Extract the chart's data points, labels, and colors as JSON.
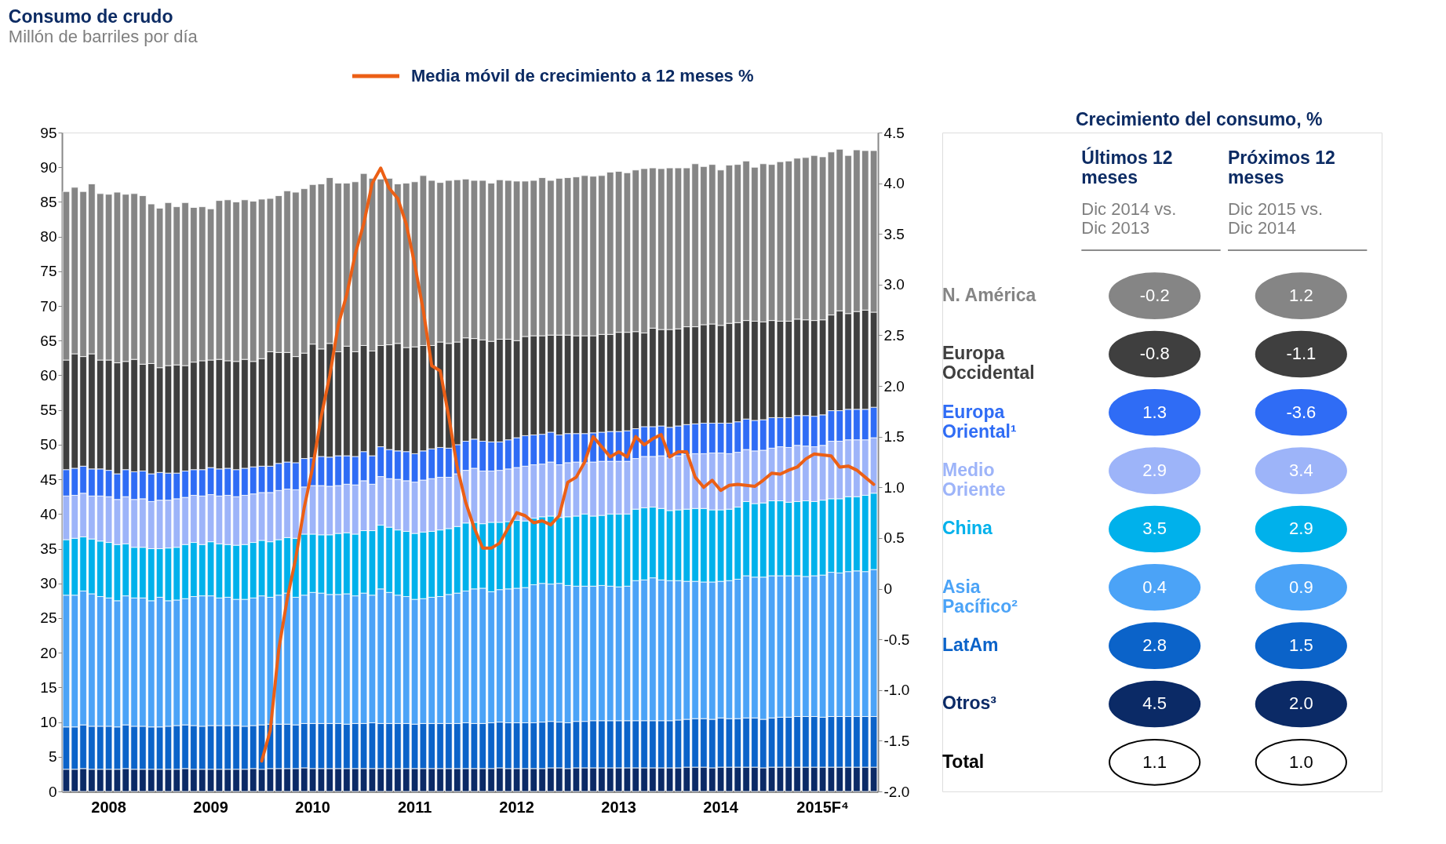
{
  "chart_data": [
    {
      "type": "bar",
      "stacked": true,
      "title": "Consumo de crudo",
      "subtitle": "Millón de barriles por día",
      "categories": [
        null,
        null,
        null,
        null,
        null,
        "2008",
        null,
        null,
        null,
        null,
        null,
        null,
        null,
        null,
        null,
        null,
        null,
        "2009",
        null,
        null,
        null,
        null,
        null,
        null,
        null,
        null,
        null,
        null,
        null,
        "2010",
        null,
        null,
        null,
        null,
        null,
        null,
        null,
        null,
        null,
        null,
        null,
        "2011",
        null,
        null,
        null,
        null,
        null,
        null,
        null,
        null,
        null,
        null,
        null,
        "2012",
        null,
        null,
        null,
        null,
        null,
        null,
        null,
        null,
        null,
        null,
        null,
        "2013",
        null,
        null,
        null,
        null,
        null,
        null,
        null,
        null,
        null,
        null,
        null,
        "2014",
        null,
        null,
        null,
        null,
        null,
        null,
        null,
        null,
        null,
        null,
        null,
        "2015F⁴",
        null,
        null,
        null,
        null,
        null,
        null
      ],
      "series": [
        {
          "color": "#0b2a66",
          "values": [
            3.2,
            3.2,
            3.3,
            3.2,
            3.2,
            3.2,
            3.2,
            3.3,
            3.2,
            3.2,
            3.2,
            3.2,
            3.2,
            3.2,
            3.3,
            3.2,
            3.2,
            3.2,
            3.2,
            3.2,
            3.2,
            3.2,
            3.3,
            3.2,
            3.3,
            3.3,
            3.3,
            3.3,
            3.4,
            3.3,
            3.3,
            3.3,
            3.3,
            3.3,
            3.3,
            3.3,
            3.3,
            3.3,
            3.3,
            3.3,
            3.3,
            3.3,
            3.3,
            3.3,
            3.3,
            3.3,
            3.3,
            3.3,
            3.3,
            3.3,
            3.3,
            3.4,
            3.3,
            3.3,
            3.3,
            3.3,
            3.3,
            3.4,
            3.4,
            3.3,
            3.4,
            3.4,
            3.4,
            3.4,
            3.4,
            3.4,
            3.4,
            3.4,
            3.4,
            3.4,
            3.4,
            3.4,
            3.4,
            3.5,
            3.5,
            3.5,
            3.4,
            3.5,
            3.5,
            3.5,
            3.5,
            3.5,
            3.4,
            3.5,
            3.5,
            3.5,
            3.5,
            3.5,
            3.5,
            3.5,
            3.5,
            3.5,
            3.5,
            3.5,
            3.5,
            3.5
          ]
        },
        {
          "color": "#0b63c9",
          "values": [
            6.1,
            6.1,
            6.3,
            6.2,
            6.2,
            6.2,
            6.1,
            6.3,
            6.2,
            6.2,
            6.1,
            6.1,
            6.2,
            6.3,
            6.3,
            6.3,
            6.2,
            6.3,
            6.3,
            6.3,
            6.3,
            6.2,
            6.2,
            6.4,
            6.4,
            6.4,
            6.4,
            6.3,
            6.4,
            6.5,
            6.5,
            6.5,
            6.5,
            6.4,
            6.5,
            6.5,
            6.6,
            6.5,
            6.5,
            6.5,
            6.5,
            6.4,
            6.5,
            6.5,
            6.5,
            6.5,
            6.5,
            6.6,
            6.5,
            6.5,
            6.6,
            6.6,
            6.6,
            6.6,
            6.6,
            6.6,
            6.7,
            6.7,
            6.6,
            6.6,
            6.7,
            6.7,
            6.8,
            6.8,
            6.8,
            6.8,
            6.8,
            6.8,
            6.8,
            6.8,
            6.8,
            6.8,
            6.9,
            6.9,
            7.0,
            7.0,
            7.0,
            7.1,
            7.0,
            7.0,
            7.1,
            7.1,
            7.0,
            7.1,
            7.2,
            7.2,
            7.3,
            7.3,
            7.3,
            7.2,
            7.3,
            7.3,
            7.3,
            7.3,
            7.3,
            7.3
          ]
        },
        {
          "color": "#4ba3f7",
          "values": [
            19.0,
            19.0,
            19.3,
            19.1,
            18.7,
            18.5,
            18.2,
            18.6,
            18.5,
            18.5,
            18.2,
            18.7,
            18.1,
            18.1,
            18.2,
            18.6,
            18.8,
            18.7,
            18.4,
            18.5,
            18.2,
            18.3,
            18.4,
            18.6,
            18.3,
            18.6,
            18.9,
            18.4,
            18.5,
            18.9,
            18.8,
            18.6,
            18.6,
            18.8,
            18.4,
            18.8,
            18.4,
            19.4,
            18.9,
            18.5,
            18.3,
            18.0,
            18.0,
            18.2,
            18.3,
            18.6,
            18.8,
            19.0,
            19.4,
            19.5,
            18.9,
            19.1,
            19.3,
            19.4,
            19.5,
            19.9,
            20.0,
            19.8,
            20.0,
            19.8,
            19.5,
            19.5,
            19.4,
            19.5,
            19.4,
            19.3,
            19.4,
            20.2,
            20.3,
            20.6,
            20.3,
            20.2,
            20.1,
            19.9,
            19.8,
            19.7,
            19.8,
            19.7,
            19.9,
            20.1,
            20.5,
            20.3,
            20.5,
            20.5,
            20.4,
            20.4,
            20.3,
            20.2,
            20.3,
            20.5,
            20.8,
            20.7,
            20.9,
            21.0,
            20.9,
            21.2
          ]
        },
        {
          "color": "#00b1eb",
          "values": [
            8.0,
            8.2,
            7.8,
            7.9,
            8.0,
            8.0,
            8.1,
            7.5,
            7.3,
            7.3,
            7.5,
            7.0,
            7.6,
            7.6,
            7.8,
            7.8,
            7.4,
            7.8,
            7.8,
            7.6,
            7.8,
            7.9,
            8.0,
            8.0,
            8.0,
            8.0,
            8.0,
            8.5,
            8.8,
            8.4,
            8.4,
            8.6,
            8.8,
            8.8,
            8.9,
            9.0,
            9.3,
            9.2,
            9.4,
            9.4,
            9.4,
            9.5,
            9.6,
            9.5,
            9.6,
            9.5,
            9.6,
            9.8,
            9.6,
            9.3,
            10.0,
            9.7,
            9.7,
            9.8,
            9.6,
            9.6,
            9.6,
            9.8,
            9.5,
            9.9,
            10.1,
            10.4,
            10.1,
            10.1,
            10.4,
            10.5,
            10.4,
            10.3,
            10.4,
            10.2,
            10.3,
            10.1,
            10.2,
            10.4,
            10.5,
            10.6,
            10.4,
            10.3,
            10.3,
            10.4,
            10.7,
            10.6,
            10.7,
            10.8,
            10.8,
            10.6,
            10.7,
            10.9,
            10.7,
            10.8,
            10.6,
            10.7,
            10.8,
            10.7,
            11.0,
            11.0
          ]
        },
        {
          "color": "#9db4f9",
          "values": [
            6.3,
            6.2,
            6.3,
            6.2,
            6.5,
            6.6,
            6.5,
            6.8,
            6.9,
            7.0,
            6.8,
            7.0,
            6.9,
            7.0,
            6.8,
            6.8,
            7.0,
            6.8,
            6.9,
            7.1,
            7.0,
            7.1,
            7.0,
            6.9,
            7.1,
            7.1,
            7.0,
            7.0,
            6.8,
            7.0,
            7.1,
            7.0,
            6.9,
            7.0,
            7.1,
            7.2,
            6.7,
            7.0,
            7.0,
            7.3,
            7.3,
            7.4,
            7.5,
            7.6,
            7.6,
            7.4,
            7.6,
            7.6,
            7.8,
            7.6,
            7.4,
            7.5,
            7.6,
            7.6,
            7.9,
            7.7,
            7.6,
            7.8,
            7.6,
            7.8,
            7.8,
            7.4,
            7.8,
            7.8,
            7.6,
            7.6,
            7.6,
            7.3,
            7.4,
            7.3,
            7.6,
            7.6,
            7.8,
            7.9,
            7.9,
            7.9,
            8.2,
            8.2,
            8.0,
            7.9,
            7.5,
            7.6,
            7.6,
            7.6,
            7.8,
            7.9,
            8.1,
            7.9,
            7.9,
            7.9,
            8.3,
            8.3,
            8.2,
            8.2,
            8.0,
            8.0
          ]
        },
        {
          "color": "#2f6cf5",
          "values": [
            3.8,
            3.9,
            3.9,
            3.9,
            3.9,
            3.8,
            3.7,
            3.9,
            4.0,
            4.0,
            4.0,
            4.0,
            3.9,
            3.7,
            3.8,
            3.7,
            3.8,
            3.9,
            3.9,
            3.9,
            3.9,
            3.9,
            3.9,
            3.8,
            3.8,
            3.9,
            3.9,
            3.9,
            4.1,
            4.0,
            4.2,
            4.2,
            4.3,
            4.1,
            4.1,
            4.2,
            4.1,
            4.3,
            4.2,
            4.1,
            4.2,
            4.1,
            4.2,
            4.3,
            4.3,
            4.2,
            4.2,
            4.2,
            4.2,
            4.3,
            4.2,
            4.1,
            4.2,
            4.3,
            4.4,
            4.3,
            4.3,
            4.3,
            4.3,
            4.2,
            4.1,
            4.2,
            4.2,
            4.2,
            4.3,
            4.3,
            4.4,
            4.3,
            4.3,
            4.3,
            4.3,
            4.4,
            4.3,
            4.3,
            4.3,
            4.4,
            4.3,
            4.3,
            4.4,
            4.4,
            4.4,
            4.4,
            4.4,
            4.4,
            4.2,
            4.3,
            4.3,
            4.4,
            4.4,
            4.4,
            4.4,
            4.4,
            4.4,
            4.4,
            4.4,
            4.4
          ]
        },
        {
          "color": "#3f3f3f",
          "values": [
            15.8,
            16.5,
            15.8,
            16.6,
            15.7,
            15.9,
            16.0,
            15.6,
            16.2,
            15.4,
            15.9,
            15.1,
            15.5,
            15.6,
            15.2,
            15.5,
            15.7,
            15.5,
            15.8,
            15.5,
            15.6,
            15.7,
            15.2,
            15.5,
            16.5,
            16.0,
            15.8,
            15.3,
            15.2,
            16.4,
            15.5,
            16.4,
            15.0,
            15.8,
            15.1,
            15.3,
            15.1,
            14.6,
            15.1,
            15.5,
            15.0,
            15.4,
            15.2,
            14.9,
            15.2,
            15.1,
            14.8,
            14.9,
            14.5,
            14.6,
            14.5,
            14.8,
            14.5,
            14.0,
            14.3,
            14.3,
            14.2,
            14.0,
            14.4,
            14.2,
            14.1,
            14.1,
            14.0,
            14.1,
            14.0,
            14.3,
            14.2,
            14.0,
            13.5,
            14.2,
            13.9,
            14.1,
            14.0,
            14.1,
            14.0,
            14.2,
            14.3,
            14.1,
            14.4,
            14.3,
            14.2,
            14.3,
            14.1,
            14.0,
            13.9,
            13.9,
            13.9,
            13.8,
            13.8,
            13.7,
            13.8,
            14.4,
            13.8,
            14.1,
            14.3,
            13.7
          ]
        },
        {
          "color": "#858585",
          "values": [
            24.3,
            24.0,
            23.8,
            24.5,
            24.0,
            23.9,
            24.6,
            24.1,
            23.9,
            24.3,
            23.0,
            23.0,
            23.5,
            22.8,
            23.5,
            22.3,
            22.2,
            21.8,
            22.9,
            23.2,
            23.0,
            23.0,
            23.1,
            23.0,
            22.1,
            22.6,
            23.3,
            23.7,
            23.7,
            23.0,
            23.8,
            23.9,
            24.3,
            23.5,
            24.5,
            24.8,
            24.9,
            24.0,
            24.0,
            23.0,
            23.7,
            23.8,
            24.5,
            23.8,
            23.0,
            23.5,
            23.4,
            22.9,
            22.8,
            23.0,
            22.8,
            23.0,
            22.9,
            23.0,
            22.4,
            22.4,
            22.8,
            22.3,
            22.6,
            22.7,
            22.9,
            23.1,
            23.0,
            22.9,
            23.4,
            23.2,
            23.0,
            23.3,
            23.7,
            23.1,
            23.2,
            23.3,
            23.2,
            22.9,
            23.5,
            22.8,
            23.0,
            22.4,
            22.8,
            22.8,
            23.0,
            22.2,
            22.8,
            22.5,
            23.0,
            23.1,
            23.2,
            23.4,
            23.8,
            23.5,
            23.5,
            23.3,
            22.8,
            23.3,
            23.0,
            23.3
          ]
        },
        {
          "type": "line",
          "axis": "y2",
          "name": "Media móvil de crecimiento a 12 meses %",
          "color": "#ec5f15",
          "values": [
            null,
            null,
            null,
            null,
            null,
            null,
            null,
            null,
            null,
            null,
            null,
            null,
            null,
            null,
            null,
            null,
            null,
            null,
            null,
            null,
            null,
            null,
            null,
            -1.7,
            -1.4,
            -0.6,
            -0.1,
            0.3,
            0.8,
            1.2,
            1.7,
            2.1,
            2.6,
            2.9,
            3.3,
            3.6,
            4.0,
            4.15,
            3.95,
            3.85,
            3.6,
            3.2,
            2.75,
            2.2,
            2.15,
            1.7,
            1.2,
            0.85,
            0.6,
            0.4,
            0.4,
            0.45,
            0.6,
            0.75,
            0.72,
            0.65,
            0.67,
            0.63,
            0.72,
            1.05,
            1.1,
            1.25,
            1.5,
            1.4,
            1.3,
            1.35,
            1.3,
            1.5,
            1.42,
            1.48,
            1.52,
            1.3,
            1.35,
            1.35,
            1.1,
            1.0,
            1.07,
            0.97,
            1.02,
            1.03,
            1.02,
            1.01,
            1.07,
            1.14,
            1.13,
            1.17,
            1.2,
            1.28,
            1.33,
            1.32,
            1.31,
            1.2,
            1.21,
            1.17,
            1.1,
            1.03
          ]
        }
      ],
      "ylim": [
        0,
        95
      ],
      "yticks": [
        0,
        5,
        10,
        15,
        20,
        25,
        30,
        35,
        40,
        45,
        50,
        55,
        60,
        65,
        70,
        75,
        80,
        85,
        90,
        95
      ],
      "y2lim": [
        -2,
        4.5
      ],
      "y2ticks": [
        {
          "value": -2,
          "label": "-2.0"
        },
        -1.5,
        {
          "value": -1,
          "label": "-1.0"
        },
        -0.5,
        0,
        0.5,
        {
          "value": 1,
          "label": "1.0"
        },
        1.5,
        {
          "value": 2,
          "label": "2.0"
        },
        2.5,
        {
          "value": 3,
          "label": "3.0"
        },
        3.5,
        {
          "value": 4,
          "label": "4.0"
        },
        4.5
      ],
      "grid": false,
      "legend": "top"
    },
    {
      "type": "heatmap",
      "title": "Crecimiento del consumo, %",
      "categories": [
        "Últimos 12\nmeses",
        "Próximos 12\nmeses"
      ],
      "annotations": [
        "Dic 2014 vs.\nDic 2013",
        "Dic 2015 vs.\nDic 2014"
      ],
      "y_categories": [
        "N. América",
        "Europa\nOccidental",
        "Europa\nOriental¹",
        "Medio\nOriente",
        "China",
        "Asia\nPacífico²",
        "LatAm",
        "Otros³",
        "Total"
      ],
      "colors": [
        "#858585",
        "#858585",
        "#3f3f3f",
        "#3f3f3f",
        "#2f6cf5",
        "#2f6cf5",
        "#9db4f9",
        "#9db4f9",
        "#00b1eb",
        "#00b1eb",
        "#4ba3f7",
        "#4ba3f7",
        "#0b63c9",
        "#0b63c9",
        "#0b2a66",
        "#0b2a66",
        "#ffffff",
        "#ffffff"
      ],
      "cell_labels": [
        [
          "-0.2",
          "1.2"
        ],
        [
          "-0.8",
          "-1.1"
        ],
        [
          "1.3",
          "-3.6"
        ],
        [
          "2.9",
          "3.4"
        ],
        [
          "3.5",
          "2.9"
        ],
        [
          "0.4",
          "0.9"
        ],
        [
          "2.8",
          "1.5"
        ],
        [
          "4.5",
          "2.0"
        ],
        [
          "1.1",
          "1.0"
        ]
      ],
      "cells": [
        [
          -0.2,
          1.2
        ],
        [
          -0.8,
          -1.1
        ],
        [
          1.3,
          -3.6
        ],
        [
          2.9,
          3.4
        ],
        [
          3.5,
          2.9
        ],
        [
          0.4,
          0.9
        ],
        [
          2.8,
          1.5
        ],
        [
          4.5,
          2.0
        ],
        [
          1.1,
          1.0
        ]
      ],
      "data_labels": true
    }
  ]
}
